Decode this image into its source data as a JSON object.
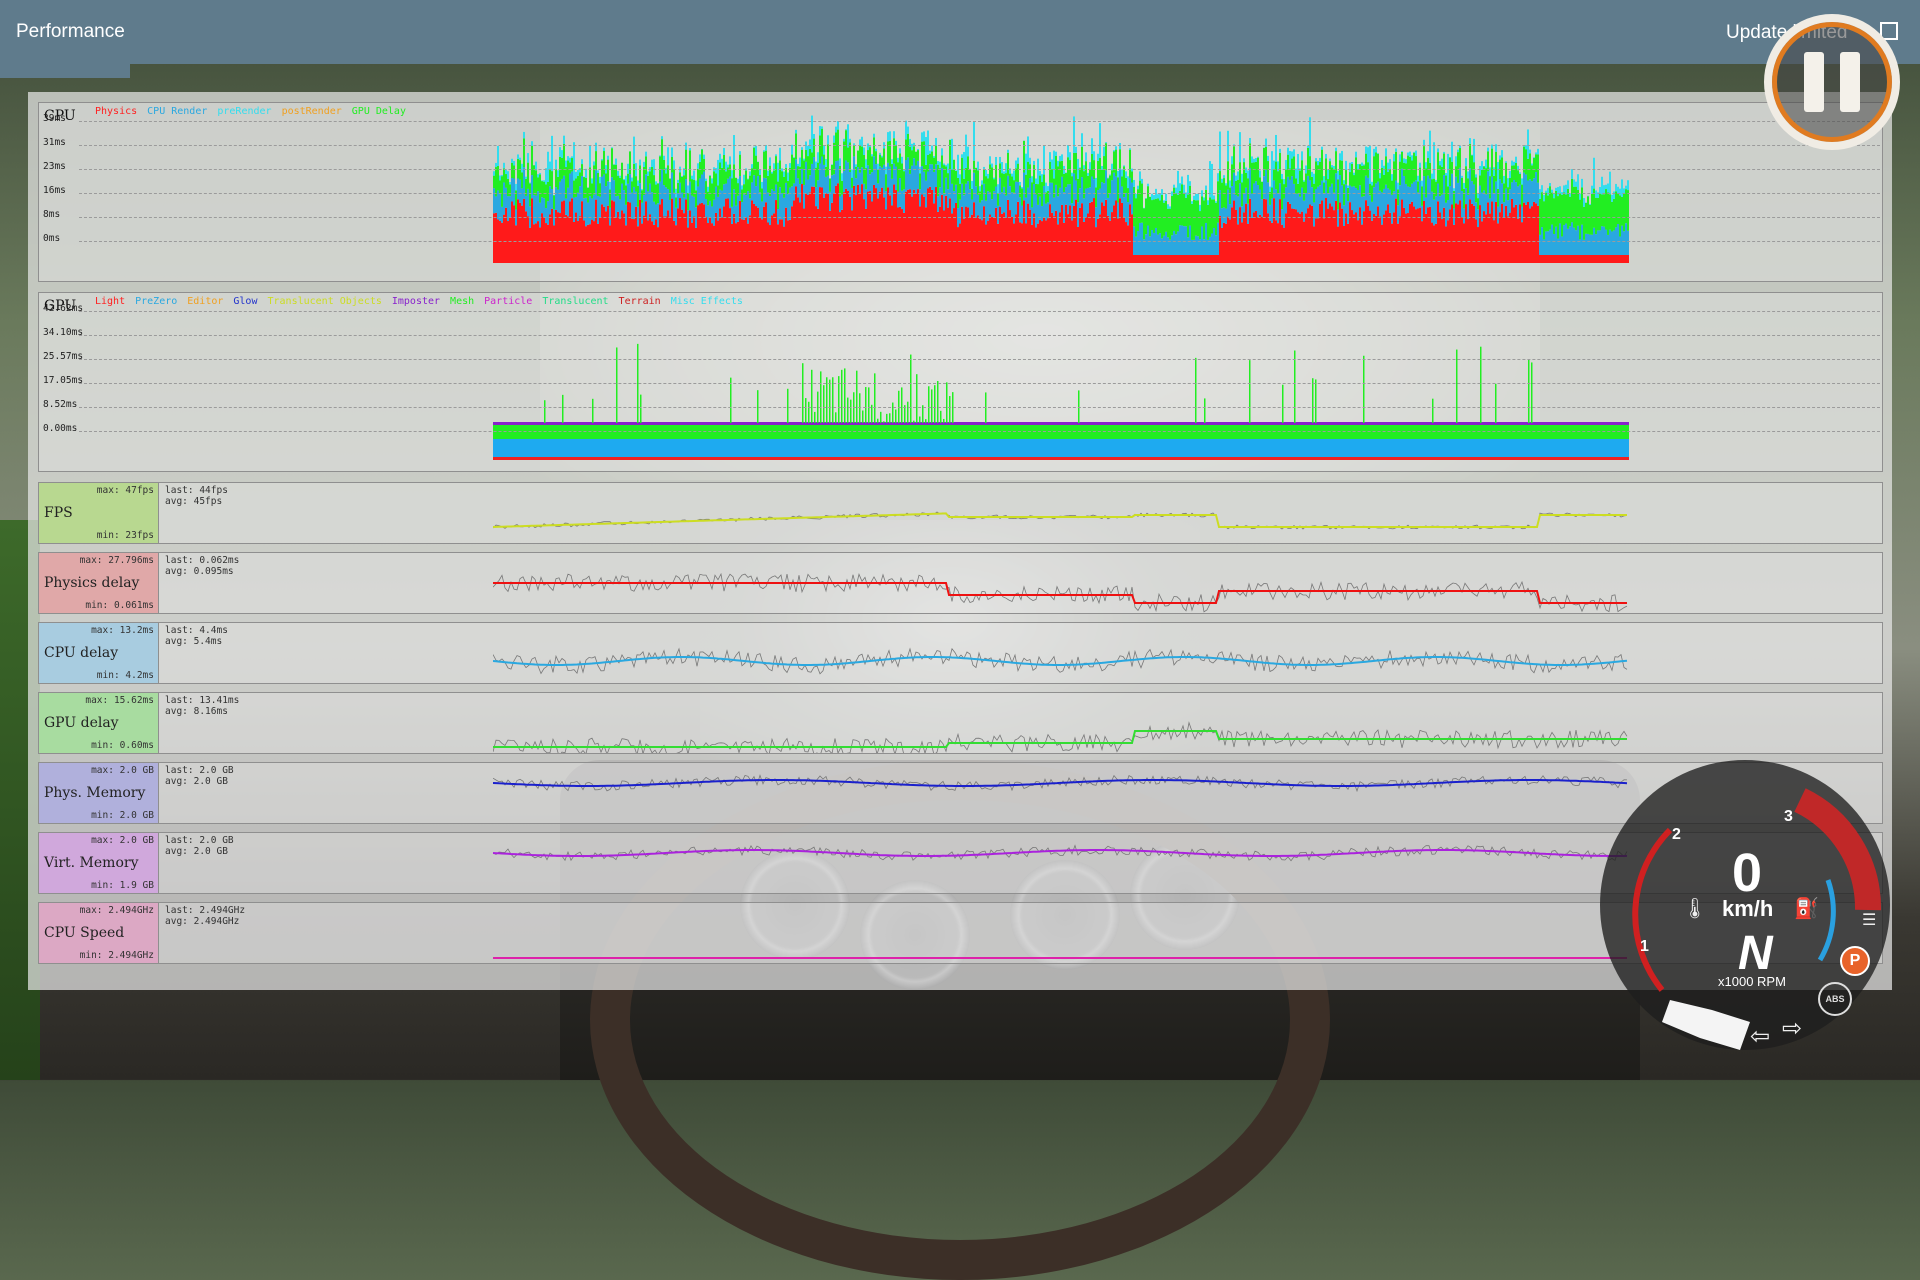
{
  "header": {
    "title": "Performance",
    "update_label": "Update limited"
  },
  "cpu_graph": {
    "label": "CPU",
    "legend": [
      {
        "label": "Physics",
        "color": "#ff2020"
      },
      {
        "label": "CPU Render",
        "color": "#2aa8e0"
      },
      {
        "label": "preRender",
        "color": "#33ddee"
      },
      {
        "label": "postRender",
        "color": "#f0a020"
      },
      {
        "label": "GPU Delay",
        "color": "#22ee22"
      }
    ],
    "y_ticks": [
      "39ms",
      "31ms",
      "23ms",
      "16ms",
      "8ms",
      "0ms"
    ]
  },
  "gpu_graph": {
    "label": "GPU",
    "legend": [
      {
        "label": "Light",
        "color": "#ff2020"
      },
      {
        "label": "PreZero",
        "color": "#2aa8e0"
      },
      {
        "label": "Editor",
        "color": "#f0a020"
      },
      {
        "label": "Glow",
        "color": "#2233cc"
      },
      {
        "label": "Translucent Objects",
        "color": "#ccdd22"
      },
      {
        "label": "Imposter",
        "color": "#8822cc"
      },
      {
        "label": "Mesh",
        "color": "#22ee22"
      },
      {
        "label": "Particle",
        "color": "#cc22cc"
      },
      {
        "label": "Translucent",
        "color": "#22dd88"
      },
      {
        "label": "Terrain",
        "color": "#cc2222"
      },
      {
        "label": "Misc Effects",
        "color": "#33ddee"
      }
    ],
    "y_ticks": [
      "42.62ms",
      "34.10ms",
      "25.57ms",
      "17.05ms",
      "8.52ms",
      "0.00ms"
    ]
  },
  "metrics": [
    {
      "name": "FPS",
      "max": "max: 47fps",
      "min": "min: 23fps",
      "last": "last: 44fps",
      "avg": "avg: 45fps",
      "box_color": "#b8d890",
      "line_color": "#ccdd22"
    },
    {
      "name": "Physics delay",
      "max": "max: 27.796ms",
      "min": "min: 0.061ms",
      "last": "last: 0.062ms",
      "avg": "avg: 0.095ms",
      "box_color": "#e0a8a8",
      "line_color": "#ee1111"
    },
    {
      "name": "CPU delay",
      "max": "max: 13.2ms",
      "min": "min: 4.2ms",
      "last": "last: 4.4ms",
      "avg": "avg: 5.4ms",
      "box_color": "#a8cce0",
      "line_color": "#2aa8e0"
    },
    {
      "name": "GPU delay",
      "max": "max: 15.62ms",
      "min": "min: 0.60ms",
      "last": "last: 13.41ms",
      "avg": "avg: 8.16ms",
      "box_color": "#a8dca0",
      "line_color": "#33dd33"
    },
    {
      "name": "Phys. Memory",
      "max": "max: 2.0 GB",
      "min": "min: 2.0 GB",
      "last": "last: 2.0 GB",
      "avg": "avg: 2.0 GB",
      "box_color": "#b0b0dc",
      "line_color": "#1a20cc"
    },
    {
      "name": "Virt. Memory",
      "max": "max: 2.0 GB",
      "min": "min: 1.9 GB",
      "last": "last: 2.0 GB",
      "avg": "avg: 2.0 GB",
      "box_color": "#d0a8dc",
      "line_color": "#aa22dd"
    },
    {
      "name": "CPU Speed",
      "max": "max: 2.494GHz",
      "min": "min: 2.494GHz",
      "last": "last: 2.494GHz",
      "avg": "avg: 2.494GHz",
      "box_color": "#dca8c4",
      "line_color": "#dd22aa"
    }
  ],
  "speedometer": {
    "speed": "0",
    "unit": "km/h",
    "gear": "N",
    "rpm_label": "x1000 RPM",
    "ticks": [
      "1",
      "2",
      "3"
    ],
    "park": "P",
    "abs": "ABS"
  }
}
